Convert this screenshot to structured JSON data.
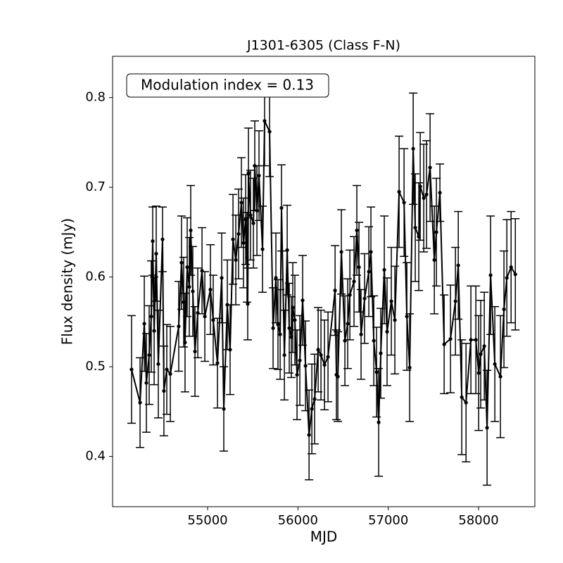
{
  "chart_data": {
    "type": "errorbar",
    "title": "J1301-6305 (Class F-N)",
    "xlabel": "MJD",
    "ylabel": "Flux density (mJy)",
    "annotation": "Modulation index = 0.13",
    "xlim": [
      53948,
      58623
    ],
    "ylim": [
      0.344,
      0.846
    ],
    "xticks": [
      55000,
      56000,
      57000,
      58000
    ],
    "yticks": [
      0.4,
      0.5,
      0.6,
      0.7,
      0.8
    ],
    "series": [
      {
        "color": "#000000",
        "x": [
          54158,
          54252,
          54299,
          54322,
          54353,
          54376,
          54392,
          54408,
          54431,
          54454,
          54501,
          54516,
          54548,
          54587,
          54680,
          54711,
          54735,
          54750,
          54774,
          54797,
          54813,
          54836,
          54860,
          54891,
          54938,
          54969,
          55031,
          55062,
          55109,
          55156,
          55179,
          55218,
          55249,
          55281,
          55312,
          55343,
          55374,
          55397,
          55421,
          55436,
          55444,
          55452,
          55475,
          55507,
          55522,
          55546,
          55569,
          55608,
          55631,
          55686,
          55725,
          55756,
          55779,
          55803,
          55818,
          55850,
          55881,
          55904,
          55927,
          55943,
          55966,
          55990,
          56021,
          56052,
          56084,
          56123,
          56154,
          56185,
          56224,
          56255,
          56294,
          56333,
          56411,
          56426,
          56442,
          56481,
          56520,
          56551,
          56575,
          56621,
          56652,
          56676,
          56699,
          56738,
          56785,
          56808,
          56840,
          56871,
          56894,
          56917,
          56956,
          56987,
          57034,
          57073,
          57120,
          57175,
          57206,
          57237,
          57276,
          57299,
          57338,
          57354,
          57393,
          57424,
          57463,
          57510,
          57533,
          57572,
          57619,
          57689,
          57744,
          57775,
          57814,
          57861,
          57915,
          57970,
          58001,
          58024,
          58063,
          58094,
          58133,
          58180,
          58242,
          58281,
          58313,
          58360,
          58407
        ],
        "values": [
          0.497,
          0.46,
          0.548,
          0.482,
          0.513,
          0.556,
          0.64,
          0.54,
          0.626,
          0.503,
          0.642,
          0.473,
          0.497,
          0.492,
          0.545,
          0.616,
          0.572,
          0.527,
          0.611,
          0.589,
          0.652,
          0.584,
          0.517,
          0.56,
          0.607,
          0.556,
          0.586,
          0.552,
          0.504,
          0.599,
          0.453,
          0.569,
          0.519,
          0.642,
          0.619,
          0.648,
          0.683,
          0.638,
          0.664,
          0.622,
          0.57,
          0.716,
          0.669,
          0.66,
          0.724,
          0.674,
          0.713,
          0.631,
          0.774,
          0.762,
          0.543,
          0.599,
          0.547,
          0.536,
          0.677,
          0.513,
          0.63,
          0.543,
          0.533,
          0.566,
          0.552,
          0.491,
          0.507,
          0.574,
          0.501,
          0.424,
          0.453,
          0.464,
          0.519,
          0.513,
          0.502,
          0.511,
          0.585,
          0.491,
          0.489,
          0.628,
          0.529,
          0.548,
          0.58,
          0.595,
          0.652,
          0.611,
          0.536,
          0.576,
          0.606,
          0.628,
          0.529,
          0.494,
          0.438,
          0.515,
          0.608,
          0.539,
          0.573,
          0.552,
          0.695,
          0.683,
          0.556,
          0.499,
          0.743,
          0.655,
          0.645,
          0.701,
          0.688,
          0.692,
          0.722,
          0.619,
          0.65,
          0.694,
          0.525,
          0.531,
          0.573,
          0.613,
          0.466,
          0.46,
          0.53,
          0.53,
          0.493,
          0.514,
          0.523,
          0.432,
          0.602,
          0.503,
          0.489,
          0.564,
          0.599,
          0.611,
          0.603
        ],
        "errors": [
          0.06,
          0.05,
          0.053,
          0.055,
          0.055,
          0.062,
          0.038,
          0.06,
          0.053,
          0.06,
          0.036,
          0.05,
          0.05,
          0.053,
          0.05,
          0.052,
          0.05,
          0.055,
          0.055,
          0.055,
          0.05,
          0.05,
          0.05,
          0.05,
          0.048,
          0.05,
          0.05,
          0.05,
          0.05,
          0.05,
          0.047,
          0.05,
          0.05,
          0.05,
          0.05,
          0.05,
          0.05,
          0.05,
          0.05,
          0.05,
          0.04,
          0.05,
          0.05,
          0.05,
          0.05,
          0.05,
          0.05,
          0.048,
          0.05,
          0.05,
          0.045,
          0.05,
          0.05,
          0.05,
          0.048,
          0.05,
          0.05,
          0.05,
          0.045,
          0.05,
          0.05,
          0.05,
          0.05,
          0.05,
          0.05,
          0.05,
          0.05,
          0.05,
          0.047,
          0.05,
          0.05,
          0.05,
          0.05,
          0.05,
          0.05,
          0.047,
          0.05,
          0.05,
          0.05,
          0.05,
          0.05,
          0.05,
          0.05,
          0.05,
          0.05,
          0.05,
          0.05,
          0.05,
          0.06,
          0.05,
          0.06,
          0.06,
          0.06,
          0.06,
          0.062,
          0.06,
          0.06,
          0.06,
          0.062,
          0.06,
          0.06,
          0.06,
          0.06,
          0.06,
          0.06,
          0.06,
          0.06,
          0.032,
          0.055,
          0.06,
          0.06,
          0.06,
          0.064,
          0.066,
          0.06,
          0.06,
          0.064,
          0.06,
          0.06,
          0.064,
          0.066,
          0.064,
          0.068,
          0.065,
          0.065,
          0.062,
          0.062
        ]
      }
    ]
  }
}
